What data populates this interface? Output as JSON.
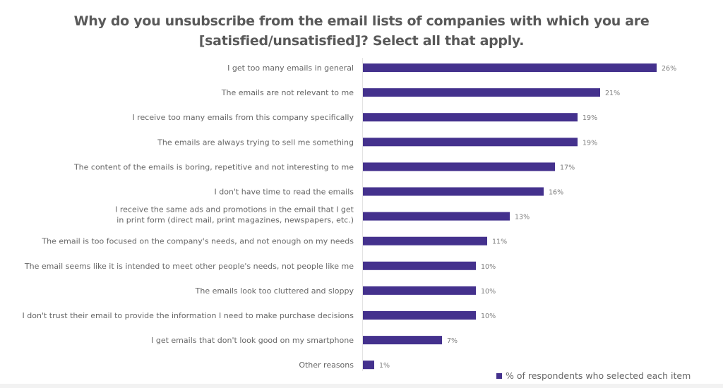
{
  "chart_data": {
    "type": "bar",
    "orientation": "horizontal",
    "title": "Why do you unsubscribe from the email lists of companies with which you are [satisfied/unsatisfied]? Select all that apply.",
    "title_lines": [
      "Why do you unsubscribe from the email lists of companies with which you are",
      "[satisfied/unsatisfied]? Select all that apply."
    ],
    "xlabel": "",
    "ylabel": "",
    "xlim": [
      0,
      26
    ],
    "grid": false,
    "bar_color": "#44318d",
    "legend": {
      "position": "bottom-right",
      "entries": [
        "% of respondents who selected each item"
      ]
    },
    "categories": [
      [
        "I get too many emails in general"
      ],
      [
        "The emails are not relevant to me"
      ],
      [
        "I receive too many emails from this company specifically"
      ],
      [
        "The emails are always trying to sell me something"
      ],
      [
        "The content of the emails is boring, repetitive and not interesting to me"
      ],
      [
        "I don't have time to read the emails"
      ],
      [
        "I receive the same ads and promotions in the email that I get",
        "in print form (direct mail, print magazines, newspapers, etc.)"
      ],
      [
        "The email is too focused on the company's needs, and not enough on my needs"
      ],
      [
        "The email seems like it is intended to meet other people's needs, not people like me"
      ],
      [
        "The emails look too cluttered and sloppy"
      ],
      [
        "I don't trust their email to provide the information I need to make purchase decisions"
      ],
      [
        "I get emails that don't look good on my smartphone"
      ],
      [
        "Other reasons"
      ]
    ],
    "series": [
      {
        "name": "% of respondents who selected each item",
        "values": [
          26,
          21,
          19,
          19,
          17,
          16,
          13,
          11,
          10,
          10,
          10,
          7,
          1
        ],
        "labels": [
          "26%",
          "21%",
          "19%",
          "19%",
          "17%",
          "16%",
          "13%",
          "11%",
          "10%",
          "10%",
          "10%",
          "7%",
          "1%"
        ]
      }
    ]
  }
}
